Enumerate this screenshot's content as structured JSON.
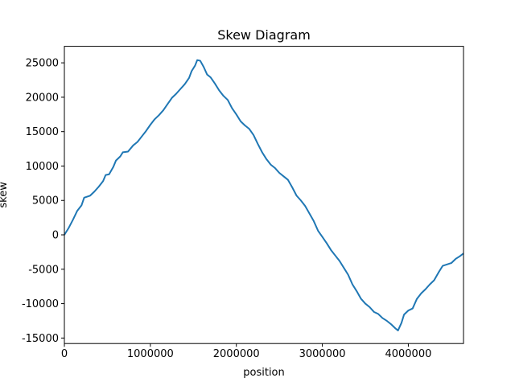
{
  "chart_data": {
    "type": "line",
    "title": "Skew Diagram",
    "xlabel": "position",
    "ylabel": "skew",
    "xlim": [
      0,
      4641652
    ],
    "ylim": [
      -15800,
      27400
    ],
    "xticks": [
      0,
      1000000,
      2000000,
      3000000,
      4000000
    ],
    "yticks": [
      -15000,
      -10000,
      -5000,
      0,
      5000,
      10000,
      15000,
      20000,
      25000
    ],
    "grid": false,
    "series": [
      {
        "color": "#1f77b4",
        "points": [
          [
            0,
            0
          ],
          [
            50000,
            1000
          ],
          [
            100000,
            2200
          ],
          [
            150000,
            3500
          ],
          [
            200000,
            4300
          ],
          [
            230000,
            5400
          ],
          [
            300000,
            5700
          ],
          [
            350000,
            6300
          ],
          [
            400000,
            7000
          ],
          [
            450000,
            7800
          ],
          [
            480000,
            8700
          ],
          [
            520000,
            8800
          ],
          [
            570000,
            9900
          ],
          [
            600000,
            10800
          ],
          [
            650000,
            11400
          ],
          [
            680000,
            12000
          ],
          [
            740000,
            12100
          ],
          [
            800000,
            13000
          ],
          [
            850000,
            13500
          ],
          [
            900000,
            14300
          ],
          [
            950000,
            15100
          ],
          [
            1000000,
            16000
          ],
          [
            1050000,
            16800
          ],
          [
            1100000,
            17400
          ],
          [
            1150000,
            18100
          ],
          [
            1200000,
            19000
          ],
          [
            1250000,
            19900
          ],
          [
            1300000,
            20500
          ],
          [
            1350000,
            21200
          ],
          [
            1400000,
            21900
          ],
          [
            1450000,
            22800
          ],
          [
            1480000,
            23800
          ],
          [
            1520000,
            24600
          ],
          [
            1545000,
            25400
          ],
          [
            1580000,
            25300
          ],
          [
            1620000,
            24400
          ],
          [
            1660000,
            23300
          ],
          [
            1700000,
            22900
          ],
          [
            1750000,
            22000
          ],
          [
            1800000,
            21000
          ],
          [
            1850000,
            20200
          ],
          [
            1900000,
            19600
          ],
          [
            1950000,
            18400
          ],
          [
            2000000,
            17500
          ],
          [
            2050000,
            16500
          ],
          [
            2100000,
            15900
          ],
          [
            2150000,
            15400
          ],
          [
            2200000,
            14500
          ],
          [
            2250000,
            13200
          ],
          [
            2300000,
            12000
          ],
          [
            2350000,
            11000
          ],
          [
            2400000,
            10200
          ],
          [
            2450000,
            9700
          ],
          [
            2500000,
            9000
          ],
          [
            2550000,
            8500
          ],
          [
            2600000,
            8000
          ],
          [
            2650000,
            6900
          ],
          [
            2700000,
            5700
          ],
          [
            2750000,
            5000
          ],
          [
            2800000,
            4200
          ],
          [
            2850000,
            3100
          ],
          [
            2900000,
            2000
          ],
          [
            2950000,
            600
          ],
          [
            3000000,
            -300
          ],
          [
            3050000,
            -1200
          ],
          [
            3100000,
            -2200
          ],
          [
            3150000,
            -3000
          ],
          [
            3200000,
            -3800
          ],
          [
            3250000,
            -4800
          ],
          [
            3300000,
            -5800
          ],
          [
            3350000,
            -7200
          ],
          [
            3400000,
            -8200
          ],
          [
            3450000,
            -9300
          ],
          [
            3500000,
            -10000
          ],
          [
            3550000,
            -10500
          ],
          [
            3600000,
            -11200
          ],
          [
            3650000,
            -11500
          ],
          [
            3700000,
            -12100
          ],
          [
            3750000,
            -12500
          ],
          [
            3800000,
            -13000
          ],
          [
            3850000,
            -13600
          ],
          [
            3880000,
            -13900
          ],
          [
            3920000,
            -12800
          ],
          [
            3950000,
            -11600
          ],
          [
            4000000,
            -11000
          ],
          [
            4050000,
            -10700
          ],
          [
            4100000,
            -9300
          ],
          [
            4150000,
            -8500
          ],
          [
            4200000,
            -7900
          ],
          [
            4250000,
            -7200
          ],
          [
            4300000,
            -6600
          ],
          [
            4350000,
            -5500
          ],
          [
            4400000,
            -4500
          ],
          [
            4450000,
            -4300
          ],
          [
            4500000,
            -4100
          ],
          [
            4550000,
            -3500
          ],
          [
            4600000,
            -3100
          ],
          [
            4641652,
            -2700
          ]
        ]
      }
    ]
  }
}
